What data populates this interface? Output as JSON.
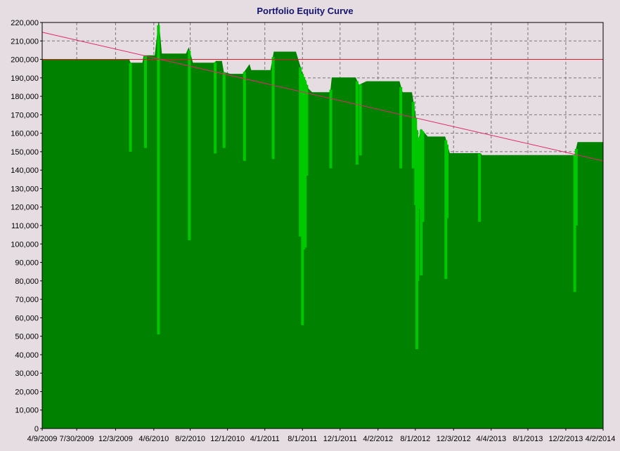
{
  "chart_data": {
    "type": "area",
    "title": "Portfolio Equity Curve",
    "xlabel": "",
    "ylabel": "",
    "ylim": [
      0,
      220000
    ],
    "y_ticks": [
      "0",
      "10,000",
      "20,000",
      "30,000",
      "40,000",
      "50,000",
      "60,000",
      "70,000",
      "80,000",
      "90,000",
      "100,000",
      "110,000",
      "120,000",
      "130,000",
      "140,000",
      "150,000",
      "160,000",
      "170,000",
      "180,000",
      "190,000",
      "200,000",
      "210,000",
      "220,000"
    ],
    "x_range": [
      "2009-04-09",
      "2014-04-02"
    ],
    "x_ticks": [
      {
        "date": "2009-04-09",
        "label": "4/9/2009"
      },
      {
        "date": "2009-07-30",
        "label": "7/30/2009"
      },
      {
        "date": "2009-12-03",
        "label": "12/3/2009"
      },
      {
        "date": "2010-04-06",
        "label": "4/6/2010"
      },
      {
        "date": "2010-08-02",
        "label": "8/2/2010"
      },
      {
        "date": "2010-12-01",
        "label": "12/1/2010"
      },
      {
        "date": "2011-04-01",
        "label": "4/1/2011"
      },
      {
        "date": "2011-08-01",
        "label": "8/1/2011"
      },
      {
        "date": "2011-12-01",
        "label": "12/1/2011"
      },
      {
        "date": "2012-04-02",
        "label": "4/2/2012"
      },
      {
        "date": "2012-08-01",
        "label": "8/1/2012"
      },
      {
        "date": "2012-12-03",
        "label": "12/3/2012"
      },
      {
        "date": "2013-04-04",
        "label": "4/4/2013"
      },
      {
        "date": "2013-08-01",
        "label": "8/1/2013"
      },
      {
        "date": "2013-12-02",
        "label": "12/2/2013"
      },
      {
        "date": "2014-04-02",
        "label": "4/2/2014"
      }
    ],
    "grid": true,
    "series": [
      {
        "color": "#008200",
        "points": [
          [
            "2009-04-09",
            200000
          ],
          [
            "2010-01-15",
            200000
          ],
          [
            "2010-01-20",
            198000
          ],
          [
            "2010-03-01",
            198000
          ],
          [
            "2010-03-05",
            202000
          ],
          [
            "2010-04-10",
            202000
          ],
          [
            "2010-04-22",
            220000
          ],
          [
            "2010-05-01",
            203000
          ],
          [
            "2010-07-20",
            203000
          ],
          [
            "2010-07-28",
            206000
          ],
          [
            "2010-08-10",
            198000
          ],
          [
            "2010-10-20",
            198000
          ],
          [
            "2010-10-25",
            199000
          ],
          [
            "2010-11-12",
            199000
          ],
          [
            "2010-11-18",
            193000
          ],
          [
            "2010-12-10",
            192000
          ],
          [
            "2011-01-20",
            192000
          ],
          [
            "2011-02-10",
            197000
          ],
          [
            "2011-02-15",
            194000
          ],
          [
            "2011-04-20",
            194000
          ],
          [
            "2011-05-01",
            204000
          ],
          [
            "2011-07-10",
            204000
          ],
          [
            "2011-07-30",
            193000
          ],
          [
            "2011-08-20",
            184000
          ],
          [
            "2011-09-01",
            182000
          ],
          [
            "2011-10-31",
            182000
          ],
          [
            "2011-11-05",
            190000
          ],
          [
            "2012-01-20",
            190000
          ],
          [
            "2012-01-31",
            186000
          ],
          [
            "2012-02-25",
            188000
          ],
          [
            "2012-06-10",
            188000
          ],
          [
            "2012-06-20",
            182000
          ],
          [
            "2012-07-20",
            182000
          ],
          [
            "2012-08-01",
            170000
          ],
          [
            "2012-08-10",
            155000
          ],
          [
            "2012-08-20",
            162000
          ],
          [
            "2012-09-10",
            158000
          ],
          [
            "2012-11-05",
            158000
          ],
          [
            "2012-11-20",
            149000
          ],
          [
            "2013-02-28",
            149000
          ],
          [
            "2013-03-05",
            148000
          ],
          [
            "2013-12-31",
            148000
          ],
          [
            "2014-01-10",
            155000
          ],
          [
            "2014-04-02",
            155000
          ]
        ]
      }
    ],
    "drawdown_spikes_color": "#00c800",
    "drawdown_spikes": [
      [
        "2010-01-20",
        150000
      ],
      [
        "2010-03-10",
        152000
      ],
      [
        "2010-04-21",
        51000
      ],
      [
        "2010-07-30",
        102000
      ],
      [
        "2010-10-22",
        149000
      ],
      [
        "2010-11-20",
        152000
      ],
      [
        "2011-01-25",
        145000
      ],
      [
        "2011-04-28",
        146000
      ],
      [
        "2011-07-25",
        104000
      ],
      [
        "2011-08-01",
        56000
      ],
      [
        "2011-08-05",
        97000
      ],
      [
        "2011-08-08",
        142000
      ],
      [
        "2011-08-10",
        98000
      ],
      [
        "2011-08-15",
        137000
      ],
      [
        "2011-11-01",
        141000
      ],
      [
        "2012-01-25",
        143000
      ],
      [
        "2012-02-05",
        148000
      ],
      [
        "2012-06-15",
        141000
      ],
      [
        "2012-07-25",
        141000
      ],
      [
        "2012-08-02",
        121000
      ],
      [
        "2012-08-06",
        43000
      ],
      [
        "2012-08-09",
        80000
      ],
      [
        "2012-08-14",
        119000
      ],
      [
        "2012-08-20",
        83000
      ],
      [
        "2012-08-25",
        112000
      ],
      [
        "2012-11-08",
        81000
      ],
      [
        "2012-11-12",
        114000
      ],
      [
        "2013-02-25",
        112000
      ],
      [
        "2013-12-31",
        74000
      ],
      [
        "2014-01-05",
        110000
      ]
    ],
    "reference_lines": [
      {
        "type": "horizontal",
        "value": 200000,
        "color": "#e0192a"
      },
      {
        "type": "trend",
        "from": [
          "2009-04-09",
          214700
        ],
        "to": [
          "2014-04-02",
          145000
        ],
        "color": "#e0286e"
      }
    ]
  }
}
